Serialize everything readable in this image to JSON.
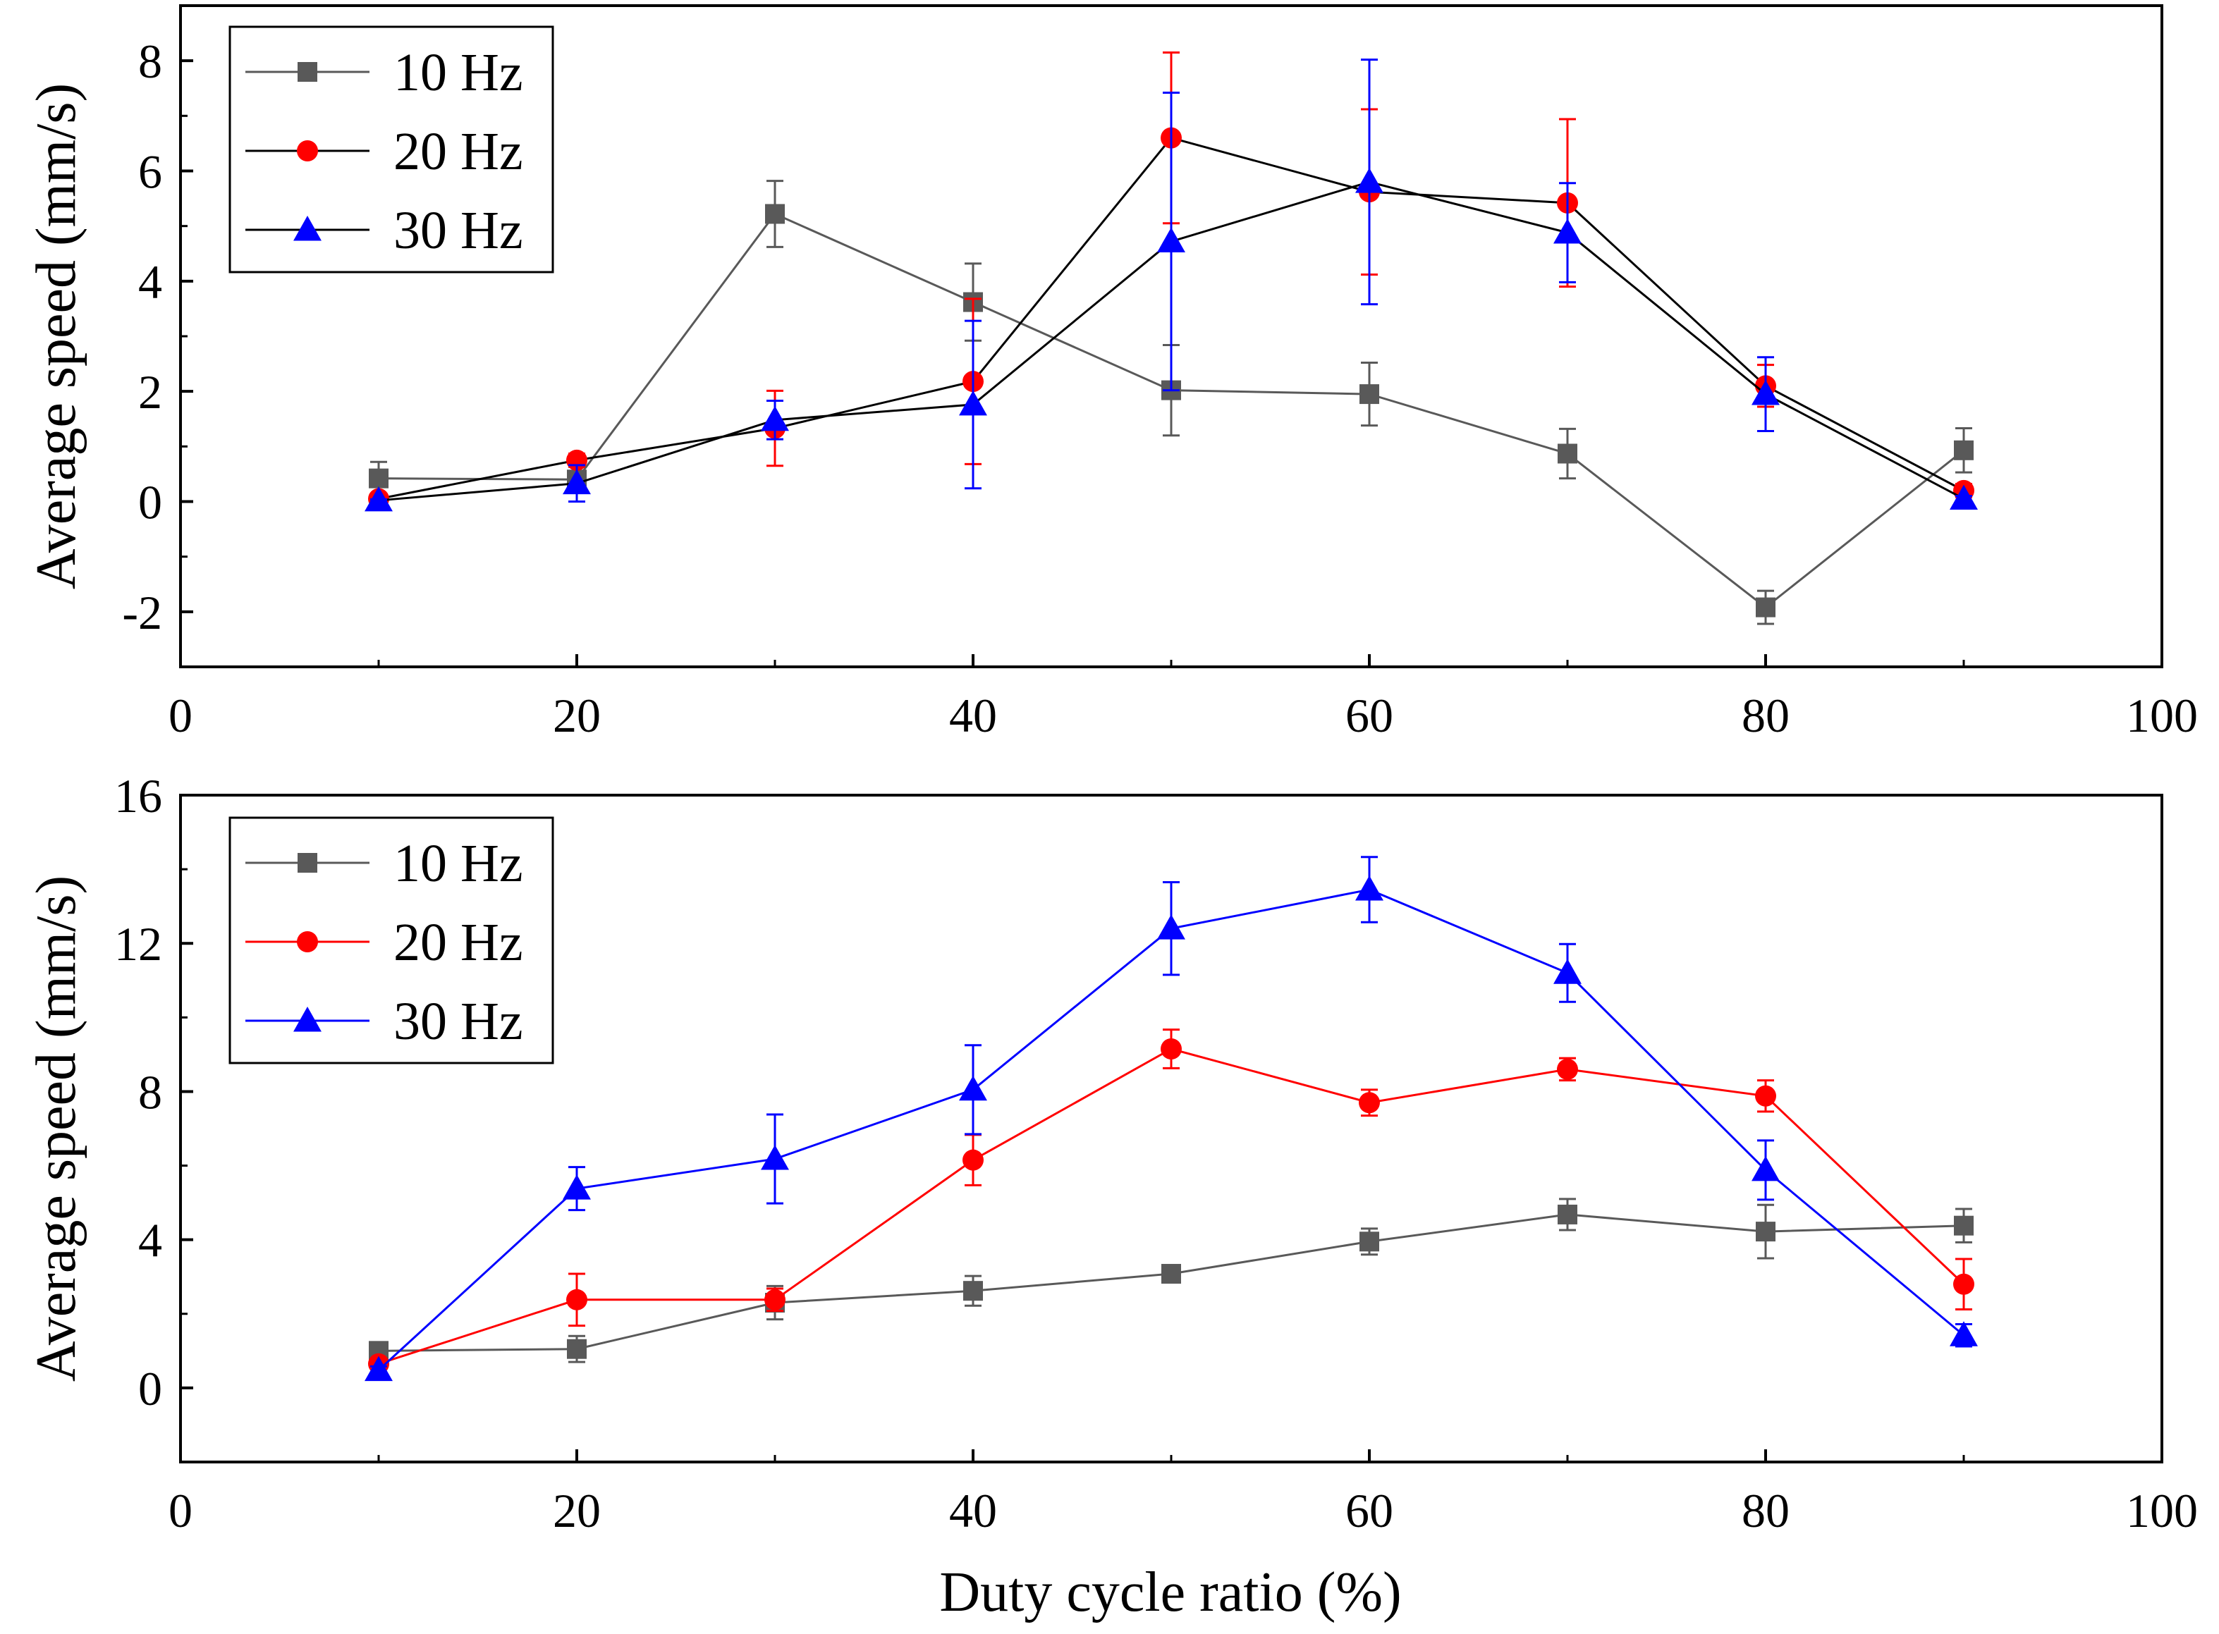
{
  "figure": {
    "xlabel": "Duty cycle ratio (%)"
  },
  "chart_data": [
    {
      "type": "line",
      "title": "",
      "xlabel": "",
      "ylabel": "Average speed (mm/s)",
      "xlim": [
        0,
        100
      ],
      "ylim": [
        -3,
        9
      ],
      "xticks": [
        0,
        20,
        40,
        60,
        80,
        100
      ],
      "yticks": [
        -2,
        0,
        2,
        4,
        6,
        8
      ],
      "legend_position": "top-left",
      "x": [
        10,
        20,
        30,
        40,
        50,
        60,
        70,
        80,
        90
      ],
      "series": [
        {
          "name": "10 Hz",
          "color": "#595959",
          "line_color": "#595959",
          "marker": "square",
          "values": [
            0.42,
            0.4,
            5.22,
            3.62,
            2.02,
            1.95,
            0.87,
            -1.92,
            0.93
          ],
          "errors": [
            0.3,
            0.1,
            0.6,
            0.7,
            0.82,
            0.57,
            0.45,
            0.3,
            0.4
          ]
        },
        {
          "name": "20 Hz",
          "color": "#ff0000",
          "line_color": "#000000",
          "marker": "circle",
          "values": [
            0.05,
            0.75,
            1.33,
            2.18,
            6.6,
            5.62,
            5.42,
            2.1,
            0.2
          ],
          "errors": [
            0.05,
            0.12,
            0.68,
            1.5,
            1.55,
            1.5,
            1.52,
            0.38,
            0.12
          ]
        },
        {
          "name": "30 Hz",
          "color": "#0000ff",
          "line_color": "#000000",
          "marker": "triangle",
          "values": [
            0.02,
            0.33,
            1.48,
            1.76,
            4.72,
            5.8,
            4.88,
            1.95,
            0.05
          ],
          "errors": [
            0.02,
            0.33,
            0.35,
            1.52,
            2.7,
            2.22,
            0.9,
            0.67,
            0.05
          ]
        }
      ]
    },
    {
      "type": "line",
      "title": "",
      "xlabel": "Duty cycle ratio (%)",
      "ylabel": "Average speed (mm/s)",
      "xlim": [
        0,
        100
      ],
      "ylim": [
        -2,
        16
      ],
      "xticks": [
        0,
        20,
        40,
        60,
        80,
        100
      ],
      "yticks": [
        0,
        4,
        8,
        12,
        16
      ],
      "legend_position": "top-left",
      "x": [
        10,
        20,
        30,
        40,
        50,
        60,
        70,
        80,
        90
      ],
      "series": [
        {
          "name": "10 Hz",
          "color": "#595959",
          "line_color": "#595959",
          "marker": "square",
          "values": [
            1.0,
            1.05,
            2.3,
            2.62,
            3.08,
            3.95,
            4.68,
            4.22,
            4.38
          ],
          "errors": [
            0.1,
            0.35,
            0.45,
            0.4,
            0.15,
            0.35,
            0.42,
            0.72,
            0.45
          ]
        },
        {
          "name": "20 Hz",
          "color": "#ff0000",
          "line_color": "#ff0000",
          "marker": "circle",
          "values": [
            0.65,
            2.38,
            2.38,
            6.15,
            9.15,
            7.7,
            8.6,
            7.88,
            2.8
          ],
          "errors": [
            0.1,
            0.7,
            0.3,
            0.68,
            0.52,
            0.35,
            0.3,
            0.42,
            0.68
          ]
        },
        {
          "name": "30 Hz",
          "color": "#0000ff",
          "line_color": "#0000ff",
          "marker": "triangle",
          "values": [
            0.48,
            5.38,
            6.18,
            8.05,
            12.4,
            13.45,
            11.2,
            5.88,
            1.42
          ],
          "errors": [
            0.1,
            0.58,
            1.2,
            1.2,
            1.25,
            0.88,
            0.78,
            0.8,
            0.3
          ]
        }
      ]
    }
  ]
}
